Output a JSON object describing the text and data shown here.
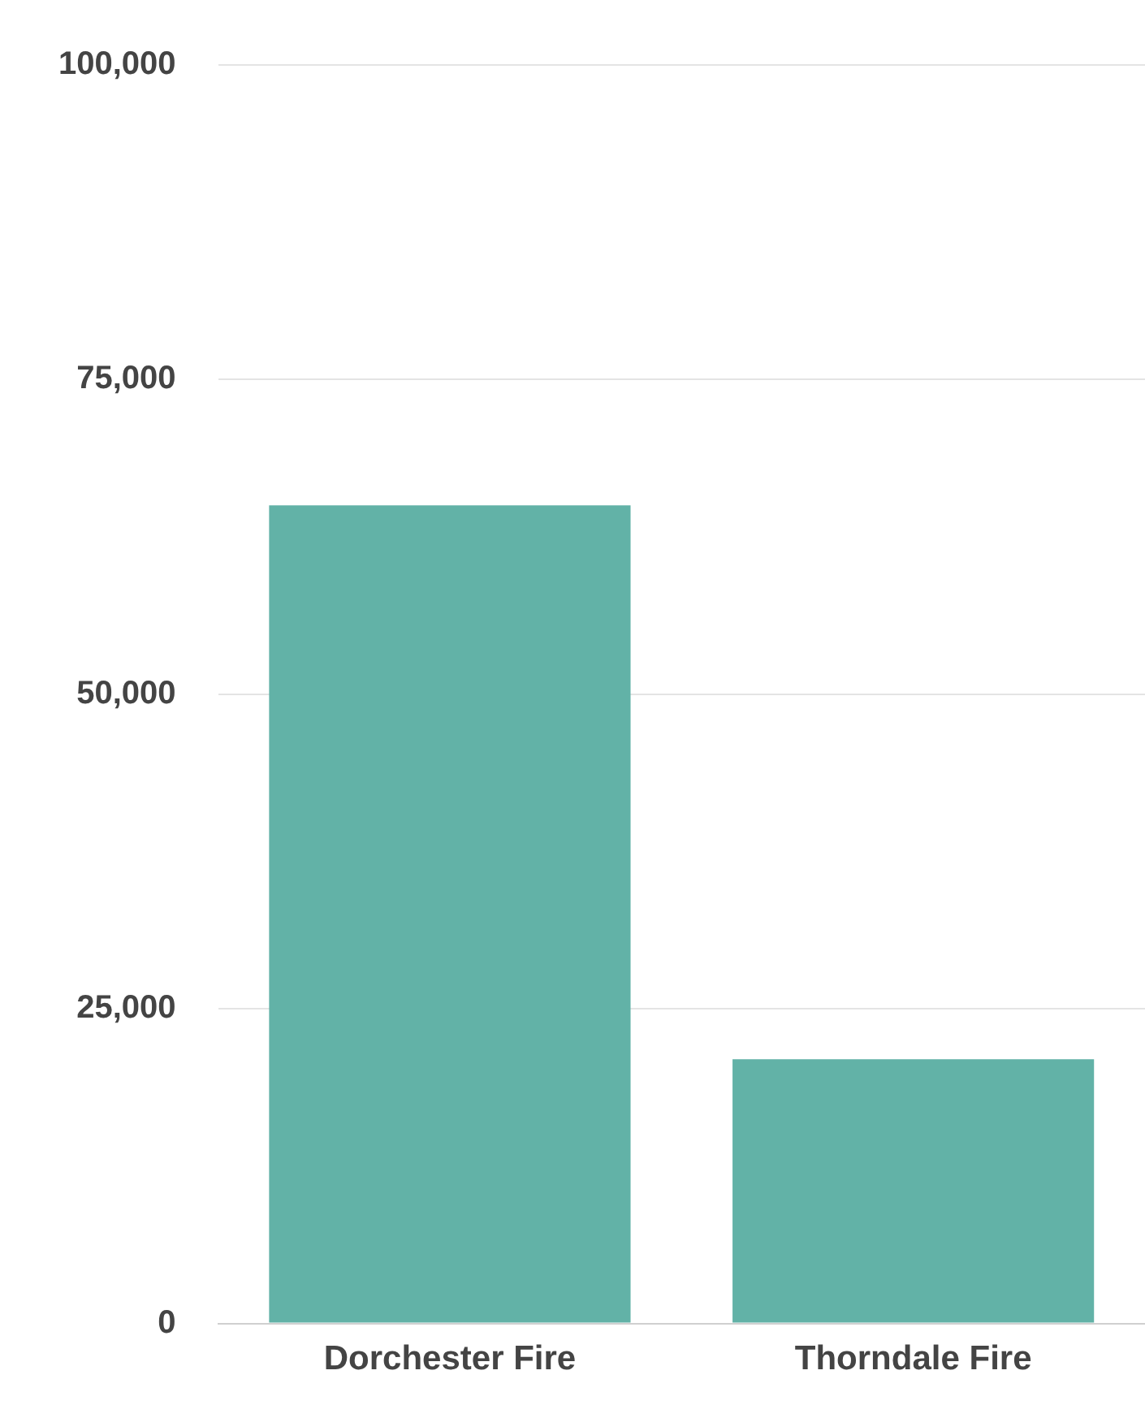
{
  "chart_data": {
    "type": "bar",
    "categories": [
      "Dorchester Fire",
      "Thorndale Fire"
    ],
    "values": [
      65000,
      21000
    ],
    "color": "#62b2a7",
    "ylim": [
      0,
      100000
    ],
    "yticks": [
      0,
      {
        "value": 25000,
        "label": "25,000"
      },
      {
        "value": 50000,
        "label": "50,000"
      },
      {
        "value": 75000,
        "label": "75,000"
      },
      {
        "value": 100000,
        "label": "100,000"
      }
    ],
    "grid": "y"
  }
}
